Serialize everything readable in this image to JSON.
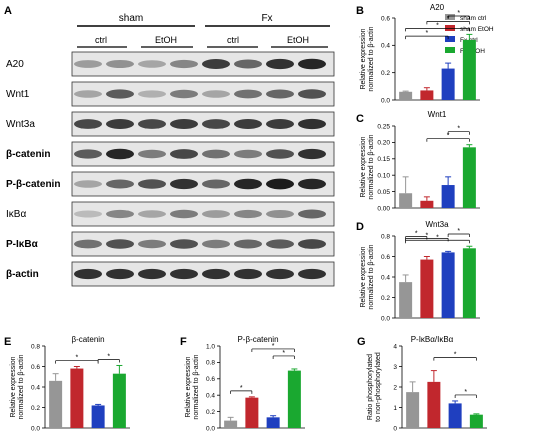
{
  "panel_letters": [
    "A",
    "B",
    "C",
    "D",
    "E",
    "F",
    "G"
  ],
  "blot": {
    "groups": [
      "sham",
      "Fx"
    ],
    "conditions": [
      "ctrl",
      "EtOH",
      "ctrl",
      "EtOH"
    ],
    "rows": [
      "A20",
      "Wnt1",
      "Wnt3a",
      "β-catenin",
      "P-β-catenin",
      "IκBα",
      "P-IκBα",
      "β-actin"
    ]
  },
  "legend": {
    "entries": [
      {
        "name": "sham ctrl",
        "color": "#969696"
      },
      {
        "name": "sham EtOH",
        "color": "#c1272d"
      },
      {
        "name": "Fx ctrl",
        "color": "#1f3fbf"
      },
      {
        "name": "Fx EtOH",
        "color": "#1aa830"
      }
    ]
  },
  "ylabel_relative": [
    "Relative expression",
    "normalized to β-actin"
  ],
  "ylabel_ratio": [
    "Ratio phosphorylated",
    "to non-phosphorylated"
  ],
  "chart_data": [
    {
      "panel": "B",
      "type": "bar",
      "title": "A20",
      "categories": [
        "sham ctrl",
        "sham EtOH",
        "Fx ctrl",
        "Fx EtOH"
      ],
      "values": [
        0.06,
        0.07,
        0.23,
        0.44
      ],
      "errors": [
        0.005,
        0.02,
        0.04,
        0.04
      ],
      "ylim": [
        0,
        0.6
      ],
      "yticks": [
        "0.0",
        "0.2",
        "0.4",
        "0.6"
      ]
    },
    {
      "panel": "C",
      "type": "bar",
      "title": "Wnt1",
      "categories": [
        "sham ctrl",
        "sham EtOH",
        "Fx ctrl",
        "Fx EtOH"
      ],
      "values": [
        0.045,
        0.022,
        0.07,
        0.185
      ],
      "errors": [
        0.05,
        0.012,
        0.025,
        0.008
      ],
      "ylim": [
        0,
        0.25
      ],
      "yticks": [
        "0.00",
        "0.05",
        "0.10",
        "0.15",
        "0.20",
        "0.25"
      ]
    },
    {
      "panel": "D",
      "type": "bar",
      "title": "Wnt3a",
      "categories": [
        "sham ctrl",
        "sham EtOH",
        "Fx ctrl",
        "Fx EtOH"
      ],
      "values": [
        0.35,
        0.57,
        0.64,
        0.68
      ],
      "errors": [
        0.07,
        0.03,
        0.01,
        0.02
      ],
      "ylim": [
        0,
        0.8
      ],
      "yticks": [
        "0.0",
        "0.2",
        "0.4",
        "0.6",
        "0.8"
      ]
    },
    {
      "panel": "E",
      "type": "bar",
      "title": "β-catenin",
      "categories": [
        "sham ctrl",
        "sham EtOH",
        "Fx ctrl",
        "Fx EtOH"
      ],
      "values": [
        0.46,
        0.58,
        0.22,
        0.53
      ],
      "errors": [
        0.07,
        0.02,
        0.01,
        0.08
      ],
      "ylim": [
        0,
        0.8
      ],
      "yticks": [
        "0.0",
        "0.2",
        "0.4",
        "0.6",
        "0.8"
      ]
    },
    {
      "panel": "F",
      "type": "bar",
      "title": "P-β-catenin",
      "categories": [
        "sham ctrl",
        "sham EtOH",
        "Fx ctrl",
        "Fx EtOH"
      ],
      "values": [
        0.09,
        0.37,
        0.13,
        0.7
      ],
      "errors": [
        0.04,
        0.01,
        0.02,
        0.02
      ],
      "ylim": [
        0,
        1.0
      ],
      "yticks": [
        "0.0",
        "0.2",
        "0.4",
        "0.6",
        "0.8",
        "1.0"
      ]
    },
    {
      "panel": "G",
      "type": "bar",
      "title": "P-IκBα/IκBα",
      "categories": [
        "sham ctrl",
        "sham EtOH",
        "Fx ctrl",
        "Fx EtOH"
      ],
      "values": [
        1.75,
        2.25,
        1.2,
        0.65
      ],
      "errors": [
        0.5,
        0.55,
        0.12,
        0.04
      ],
      "ylim": [
        0,
        4
      ],
      "yticks": [
        "0",
        "1",
        "2",
        "3",
        "4"
      ]
    }
  ],
  "significance_marker": "*"
}
